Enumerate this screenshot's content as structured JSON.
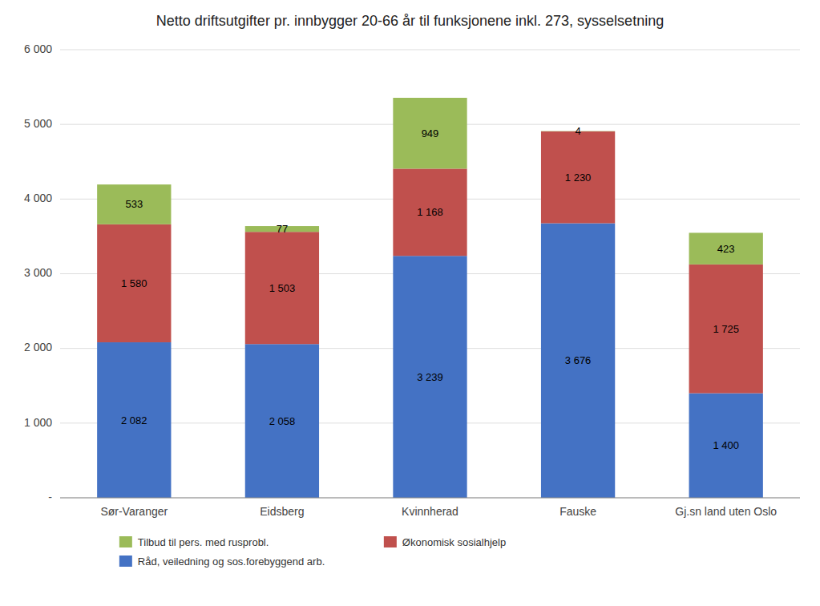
{
  "chart_data": {
    "type": "bar",
    "stacked": true,
    "title": "Netto driftsutgifter pr. innbygger 20-66 år til funksjonene inkl. 273, sysselsetning",
    "categories": [
      "Sør-Varanger",
      "Eidsberg",
      "Kvinnherad",
      "Fauske",
      "Gj.sn land uten Oslo"
    ],
    "series": [
      {
        "name": "Råd, veiledning og sos.forebyggend arb.",
        "color": "#4472C4",
        "values": [
          2082,
          2058,
          3239,
          3676,
          1400
        ],
        "value_labels": [
          "2 082",
          "2 058",
          "3 239",
          "3 676",
          "1 400"
        ]
      },
      {
        "name": "Økonomisk sosialhjelp",
        "color": "#C0504D",
        "values": [
          1580,
          1503,
          1168,
          1230,
          1725
        ],
        "value_labels": [
          "1 580",
          "1 503",
          "1 168",
          "1 230",
          "1 725"
        ]
      },
      {
        "name": "Tilbud til pers. med rusprobl.",
        "color": "#9BBB59",
        "values": [
          533,
          77,
          949,
          4,
          423
        ],
        "value_labels": [
          "533",
          "77",
          "949",
          "4",
          "423"
        ]
      }
    ],
    "ylim": [
      0,
      6000
    ],
    "yticks": [
      {
        "value": 0,
        "label": "-"
      },
      {
        "value": 1000,
        "label": "1 000"
      },
      {
        "value": 2000,
        "label": "2 000"
      },
      {
        "value": 3000,
        "label": "3 000"
      },
      {
        "value": 4000,
        "label": "4 000"
      },
      {
        "value": 5000,
        "label": "5 000"
      },
      {
        "value": 6000,
        "label": "6 000"
      }
    ],
    "grid": true,
    "legend": "bottom",
    "data_labels": true
  }
}
